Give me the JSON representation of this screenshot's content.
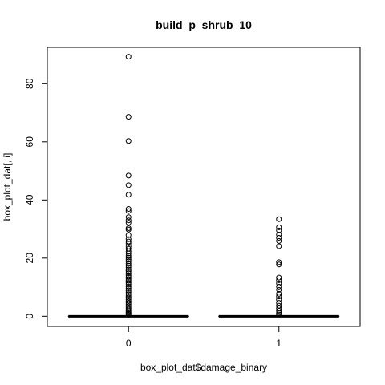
{
  "chart_data": {
    "type": "box",
    "title": "build_p_shrub_10",
    "xlabel": "box_plot_dat$damage_binary",
    "ylabel": "box_plot_dat[, i]",
    "categories": [
      "0",
      "1"
    ],
    "ylim": [
      -3.5,
      92.5
    ],
    "yticks": [
      0,
      20,
      40,
      60,
      80
    ],
    "grid": false,
    "legend": "none",
    "boxes": [
      {
        "category": "0",
        "min": 0,
        "q1": 0,
        "median": 0,
        "q3": 0,
        "max": 0
      },
      {
        "category": "1",
        "min": 0,
        "q1": 0,
        "median": 0,
        "q3": 0,
        "max": 0
      }
    ],
    "outliers": [
      {
        "category": "0",
        "values": [
          89.3,
          68.6,
          60.3,
          48.4,
          45.1,
          41.8,
          36.9,
          36.2,
          34.1,
          33.0,
          32.2,
          30.3,
          29.8,
          27.9,
          26.5,
          25.7,
          25.1,
          24.0,
          23.2,
          22.3,
          21.6,
          20.8,
          20.2,
          19.5,
          18.9,
          18.1,
          17.4,
          16.8,
          16.1,
          15.5,
          14.8,
          14.1,
          13.5,
          12.8,
          12.2,
          11.5,
          10.9,
          10.2,
          9.6,
          8.9,
          8.3,
          7.6,
          7.0,
          6.4,
          5.8,
          5.2,
          4.6,
          4.0,
          3.4,
          2.8,
          2.3,
          1.8,
          1.3,
          0.9,
          0.5
        ]
      },
      {
        "category": "1",
        "values": [
          33.4,
          30.6,
          29.5,
          28.1,
          27.0,
          25.9,
          24.1,
          18.6,
          17.8,
          13.3,
          12.4,
          11.3,
          10.2,
          9.1,
          7.7,
          6.8,
          5.7,
          4.6,
          3.6,
          2.7,
          1.9,
          1.2,
          0.6
        ]
      }
    ]
  }
}
